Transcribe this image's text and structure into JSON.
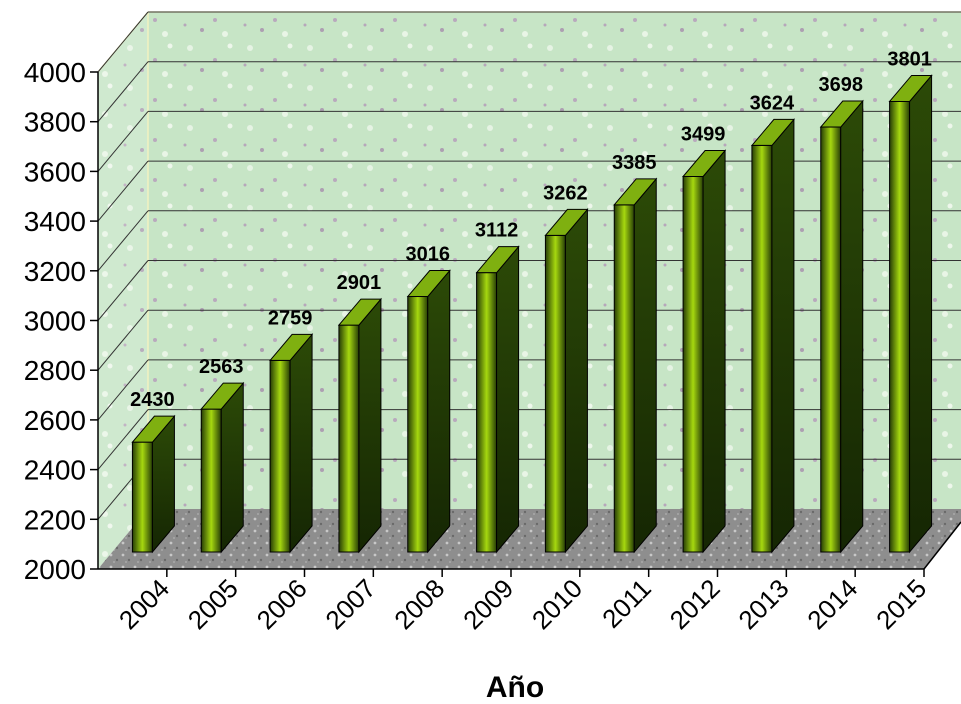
{
  "chart_data": {
    "type": "bar",
    "style": "3d-column",
    "categories": [
      "2004",
      "2005",
      "2006",
      "2007",
      "2008",
      "2009",
      "2010",
      "2011",
      "2012",
      "2013",
      "2014",
      "2015"
    ],
    "values": [
      2430,
      2563,
      2759,
      2901,
      3016,
      3112,
      3262,
      3385,
      3499,
      3624,
      3698,
      3801
    ],
    "data_labels": [
      "2430",
      "2563",
      "2759",
      "2901",
      "3016",
      "3112",
      "3262",
      "3385",
      "3499",
      "3624",
      "3698",
      "3801"
    ],
    "xlabel": "Año",
    "ylabel": "",
    "ylim": [
      2000,
      4000
    ],
    "yticks": [
      "2000",
      "2200",
      "2400",
      "2600",
      "2800",
      "3000",
      "3200",
      "3400",
      "3600",
      "3800",
      "4000"
    ],
    "grid": true,
    "legend": "none",
    "colors": {
      "bar_light": "#a6d80f",
      "bar_dark": "#263d06",
      "bar_top": "#7fb010",
      "bar_side": "#1a2e04",
      "wall": "#c9e6c9",
      "floor": "#8f8f8f",
      "axis_line": "#000000"
    }
  }
}
